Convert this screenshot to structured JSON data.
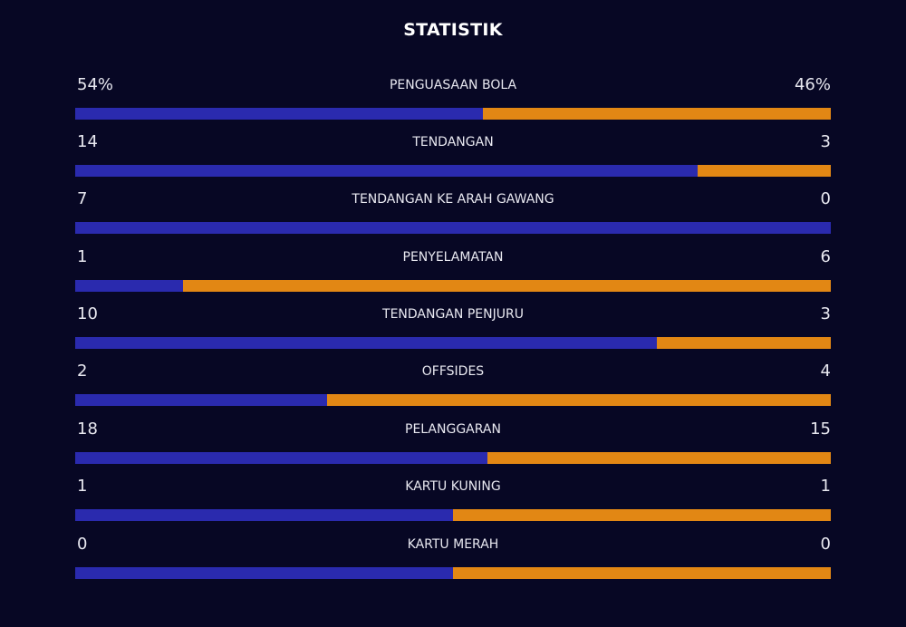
{
  "title": "STATISTIK",
  "colors": {
    "background": "#070724",
    "home": "#2a2aae",
    "away": "#e28714",
    "text": "#e8e8f0"
  },
  "stats": [
    {
      "label": "PENGUASAAN BOLA",
      "home": "54%",
      "away": "46%",
      "home_share": 0.54
    },
    {
      "label": "TENDANGAN",
      "home": "14",
      "away": "3",
      "home_share": 0.8235
    },
    {
      "label": "TENDANGAN KE ARAH GAWANG",
      "home": "7",
      "away": "0",
      "home_share": 1.0
    },
    {
      "label": "PENYELAMATAN",
      "home": "1",
      "away": "6",
      "home_share": 0.1429
    },
    {
      "label": "TENDANGAN PENJURU",
      "home": "10",
      "away": "3",
      "home_share": 0.7692
    },
    {
      "label": "OFFSIDES",
      "home": "2",
      "away": "4",
      "home_share": 0.3333
    },
    {
      "label": "PELANGGARAN",
      "home": "18",
      "away": "15",
      "home_share": 0.5455
    },
    {
      "label": "KARTU KUNING",
      "home": "1",
      "away": "1",
      "home_share": 0.5
    },
    {
      "label": "KARTU MERAH",
      "home": "0",
      "away": "0",
      "home_share": 0.5
    }
  ]
}
